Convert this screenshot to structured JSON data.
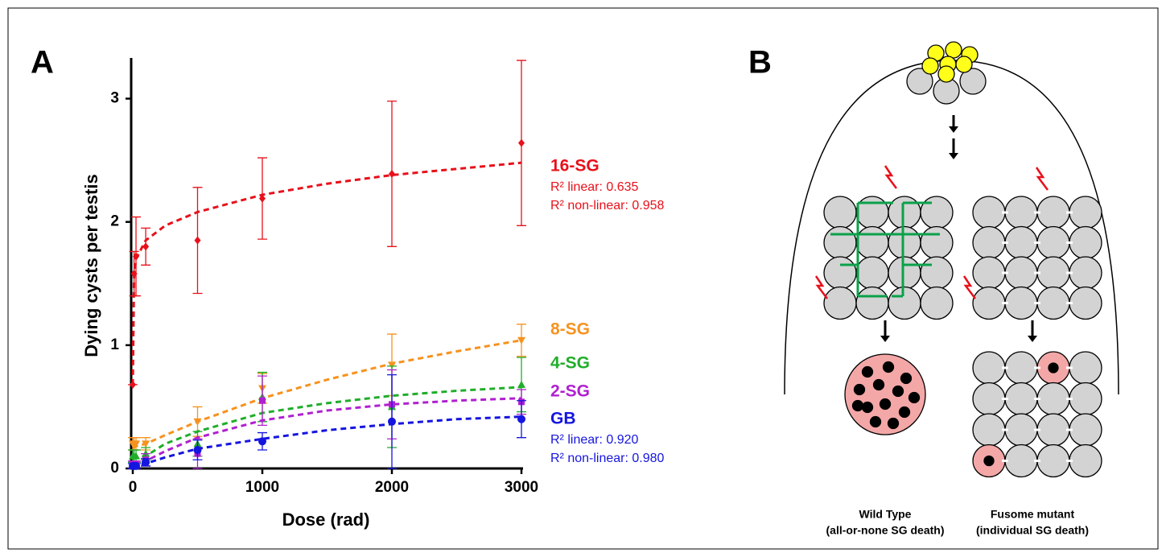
{
  "panels": {
    "a": "A",
    "b": "B"
  },
  "chart_data": {
    "type": "scatter",
    "x_label": "Dose (rad)",
    "y_label": "Dying cysts per testis",
    "xlim": [
      0,
      3000
    ],
    "ylim": [
      0,
      3.33
    ],
    "xticks": [
      0,
      1000,
      2000,
      3000
    ],
    "yticks": [
      0,
      1,
      2,
      3
    ],
    "x": [
      0,
      10,
      25,
      100,
      500,
      1000,
      2000,
      3000
    ],
    "fit_x": [
      0,
      10,
      25,
      100,
      250,
      500,
      1000,
      1500,
      2000,
      2500,
      3000
    ],
    "series": [
      {
        "name": "16-SG",
        "color": "#e8101a",
        "marker": "diamond",
        "values": [
          0.68,
          1.58,
          1.72,
          1.8,
          1.85,
          2.19,
          2.39,
          2.64
        ],
        "errors": [
          0,
          0.18,
          0.32,
          0.15,
          0.43,
          0.33,
          0.59,
          0.67
        ],
        "fit": [
          0.68,
          1.55,
          1.7,
          1.85,
          1.97,
          2.08,
          2.22,
          2.31,
          2.38,
          2.43,
          2.48
        ],
        "annotations": [
          "R² linear: 0.635",
          "R² non-linear: 0.958"
        ]
      },
      {
        "name": "8-SG",
        "color": "#f7921e",
        "marker": "down",
        "values": [
          0.2,
          0.2,
          0.2,
          0.2,
          0.38,
          0.65,
          0.84,
          1.04
        ],
        "errors": [
          0.05,
          0.05,
          0.05,
          0.05,
          0.12,
          0.12,
          0.25,
          0.13
        ],
        "fit": [
          0.17,
          0.17,
          0.18,
          0.2,
          0.27,
          0.38,
          0.57,
          0.72,
          0.85,
          0.95,
          1.04
        ]
      },
      {
        "name": "4-SG",
        "color": "#1fae2a",
        "marker": "up",
        "values": [
          0.1,
          0.1,
          0.1,
          0.12,
          0.2,
          0.58,
          0.5,
          0.68
        ],
        "errors": [
          0.05,
          0.05,
          0.05,
          0.05,
          0.1,
          0.2,
          0.33,
          0.22
        ],
        "fit": [
          0.08,
          0.08,
          0.09,
          0.1,
          0.2,
          0.3,
          0.45,
          0.53,
          0.59,
          0.63,
          0.66
        ]
      },
      {
        "name": "2-SG",
        "color": "#b020d0",
        "marker": "square",
        "values": [
          0.03,
          0.03,
          0.03,
          0.07,
          0.12,
          0.55,
          0.52,
          0.54
        ],
        "errors": [
          0.03,
          0.03,
          0.03,
          0.05,
          0.12,
          0.2,
          0.28,
          0.1
        ],
        "fit": [
          0.02,
          0.02,
          0.03,
          0.06,
          0.14,
          0.25,
          0.39,
          0.47,
          0.52,
          0.55,
          0.57
        ]
      },
      {
        "name": "GB",
        "color": "#1515e0",
        "marker": "circle",
        "values": [
          0.02,
          0.02,
          0.02,
          0.05,
          0.15,
          0.22,
          0.38,
          0.4
        ],
        "errors": [
          0.02,
          0.02,
          0.02,
          0.03,
          0.08,
          0.07,
          0.38,
          0.15
        ],
        "fit": [
          0,
          0.01,
          0.02,
          0.04,
          0.09,
          0.16,
          0.24,
          0.31,
          0.36,
          0.4,
          0.42
        ],
        "annotations": [
          "R² linear: 0.920",
          "R² non-linear: 0.980"
        ]
      }
    ]
  },
  "diagram": {
    "left_title": "Wild Type",
    "left_subtitle": "(all-or-none SG death)",
    "right_title": "Fusome mutant",
    "right_subtitle": "(individual SG death)"
  }
}
